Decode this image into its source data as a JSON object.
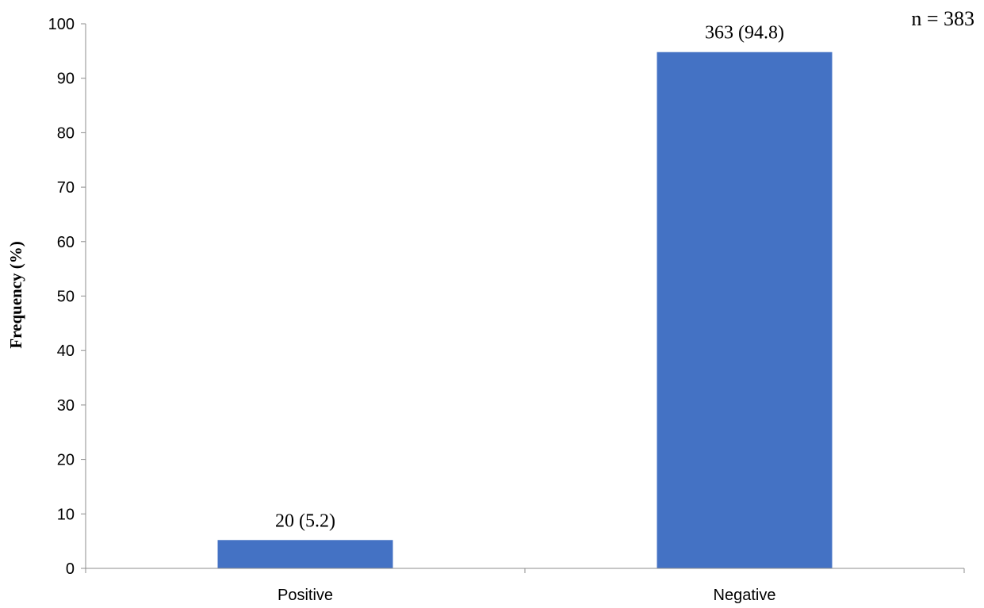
{
  "chart_data": {
    "type": "bar",
    "categories": [
      "Positive",
      "Negative"
    ],
    "values": [
      5.2,
      94.8
    ],
    "data_labels": [
      "20 (5.2)",
      "363 (94.8)"
    ],
    "title": "",
    "xlabel": "",
    "ylabel": "Frequency (%)",
    "ylim": [
      0,
      100
    ],
    "yticks": [
      0,
      10,
      20,
      30,
      40,
      50,
      60,
      70,
      80,
      90,
      100
    ],
    "grid": false,
    "legend": "none",
    "bar_color": "#4472C4",
    "annotation": "n = 383"
  }
}
